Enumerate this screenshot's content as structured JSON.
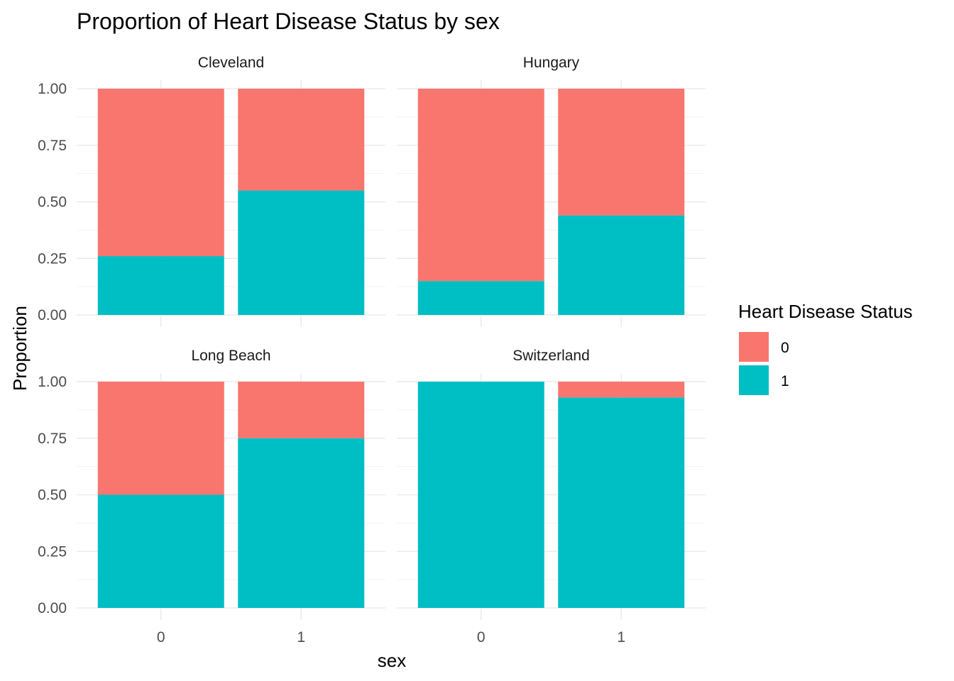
{
  "colors": {
    "status_0": "#F8766D",
    "status_1": "#00BFC4",
    "background": "#FFFFFF",
    "grid": "#EBEBEB"
  },
  "chart_data": {
    "type": "bar",
    "stacked": "proportion",
    "title": "Proportion of Heart Disease Status by sex",
    "xlabel": "sex",
    "ylabel": "Proportion",
    "categories": [
      "0",
      "1"
    ],
    "ylim": [
      0,
      1
    ],
    "y_ticks": [
      "0.00",
      "0.25",
      "0.50",
      "0.75",
      "1.00"
    ],
    "grid": true,
    "legend": {
      "title": "Heart Disease Status",
      "placement": "right",
      "entries": [
        "0",
        "1"
      ]
    },
    "facets": [
      {
        "name": "Cleveland",
        "series": [
          {
            "name": "0",
            "values": [
              0.74,
              0.45
            ]
          },
          {
            "name": "1",
            "values": [
              0.26,
              0.55
            ]
          }
        ]
      },
      {
        "name": "Hungary",
        "series": [
          {
            "name": "0",
            "values": [
              0.85,
              0.56
            ]
          },
          {
            "name": "1",
            "values": [
              0.15,
              0.44
            ]
          }
        ]
      },
      {
        "name": "Long Beach",
        "series": [
          {
            "name": "0",
            "values": [
              0.5,
              0.25
            ]
          },
          {
            "name": "1",
            "values": [
              0.5,
              0.75
            ]
          }
        ]
      },
      {
        "name": "Switzerland",
        "series": [
          {
            "name": "0",
            "values": [
              0.0,
              0.07
            ]
          },
          {
            "name": "1",
            "values": [
              1.0,
              0.93
            ]
          }
        ]
      }
    ]
  }
}
